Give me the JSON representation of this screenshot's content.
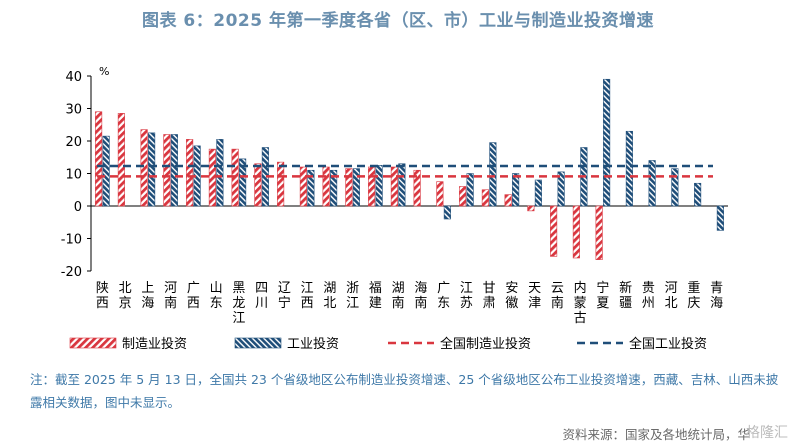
{
  "title": "图表 6：2025 年第一季度各省（区、市）工业与制造业投资增速",
  "note": "注：截至 2025 年 5 月 13 日，全国共 23 个省级地区公布制造业投资增速、25 个省级地区公布工业投资增速，西藏、吉林、山西未披露相关数据，图中未显示。",
  "source": "资料来源：国家及各地统计局，华",
  "watermark": "格隆汇",
  "colors": {
    "manufacturing": "#d9363f",
    "industry": "#1f4e79",
    "axis": "#000000"
  },
  "chart_data": {
    "type": "bar",
    "ylabel": "%",
    "ylim": [
      -20,
      40
    ],
    "yticks": [
      -20,
      -10,
      0,
      10,
      20,
      30,
      40
    ],
    "grid": false,
    "legend_position": "bottom",
    "categories": [
      "陕西",
      "北京",
      "上海",
      "河南",
      "广西",
      "山东",
      "黑龙江",
      "四川",
      "辽宁",
      "江西",
      "湖北",
      "浙江",
      "福建",
      "湖南",
      "海南",
      "广东",
      "江苏",
      "甘肃",
      "安徽",
      "天津",
      "云南",
      "内蒙古",
      "宁夏",
      "新疆",
      "贵州",
      "河北",
      "重庆",
      "青海"
    ],
    "series": [
      {
        "name": "制造业投资",
        "pattern": "hatch",
        "values": [
          29,
          28.5,
          23.5,
          22,
          20.5,
          17.5,
          17.5,
          13,
          13.5,
          12,
          12,
          11.5,
          12,
          12,
          11,
          7.5,
          6,
          5,
          3.5,
          -1.5,
          -15.5,
          -16,
          -16.5,
          null,
          null,
          null,
          null,
          null
        ]
      },
      {
        "name": "工业投资",
        "pattern": "hatch",
        "values": [
          21.5,
          null,
          22.5,
          22,
          18.5,
          20.5,
          14.5,
          18,
          null,
          11,
          11,
          11.5,
          12.5,
          13,
          null,
          -4,
          10,
          19.5,
          10,
          8,
          10.5,
          18,
          39,
          23,
          14,
          11.5,
          7,
          -7.5
        ]
      },
      {
        "name": "全国制造业投资",
        "style": "dashed",
        "value": 9.1
      },
      {
        "name": "全国工业投资",
        "style": "dashed",
        "value": 12.3
      }
    ]
  }
}
